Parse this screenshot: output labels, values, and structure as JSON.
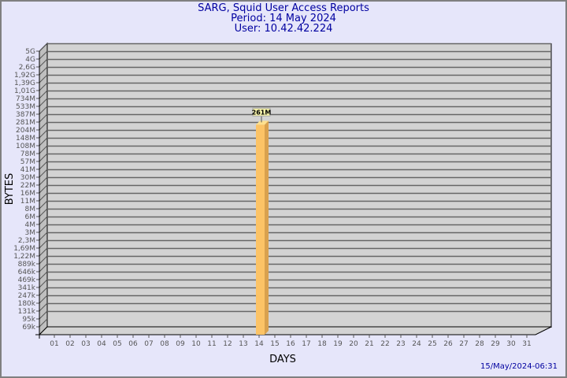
{
  "header": {
    "title": "SARG, Squid User Access Reports",
    "period": "Period: 14 May 2024",
    "user": "User: 10.42.42.224"
  },
  "footer": {
    "timestamp": "15/May/2024-06:31"
  },
  "colors": {
    "background": "#e6e6fa",
    "plot": "#d3d3d3",
    "bar": "#fcc366",
    "bar_side": "#d9a14e",
    "title": "#0000a0"
  },
  "chart_data": {
    "type": "bar",
    "xlabel": "DAYS",
    "ylabel": "BYTES",
    "y_scale": "log",
    "grid": true,
    "y_ticks": [
      "5G",
      "4G",
      "2,6G",
      "1,92G",
      "1,39G",
      "1,01G",
      "734M",
      "533M",
      "387M",
      "281M",
      "204M",
      "148M",
      "108M",
      "78M",
      "57M",
      "41M",
      "30M",
      "22M",
      "16M",
      "11M",
      "8M",
      "6M",
      "4M",
      "3M",
      "2,3M",
      "1,69M",
      "1,22M",
      "889k",
      "646k",
      "469k",
      "341k",
      "247k",
      "180k",
      "131k",
      "95k",
      "69k"
    ],
    "categories": [
      "01",
      "02",
      "03",
      "04",
      "05",
      "06",
      "07",
      "08",
      "09",
      "10",
      "11",
      "12",
      "13",
      "14",
      "15",
      "16",
      "17",
      "18",
      "19",
      "20",
      "21",
      "22",
      "23",
      "24",
      "25",
      "26",
      "27",
      "28",
      "29",
      "30",
      "31"
    ],
    "series": [
      {
        "values": [
          null,
          null,
          null,
          null,
          null,
          null,
          null,
          null,
          null,
          null,
          null,
          null,
          null,
          261000000,
          null,
          null,
          null,
          null,
          null,
          null,
          null,
          null,
          null,
          null,
          null,
          null,
          null,
          null,
          null,
          null,
          null
        ],
        "labels": {
          "14": "261M"
        }
      }
    ]
  }
}
